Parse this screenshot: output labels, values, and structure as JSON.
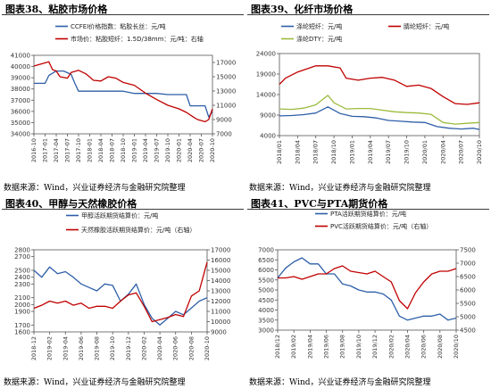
{
  "chart_data": [
    {
      "type": "line",
      "title": "图表38、粘胶市场价格",
      "source": "数据来源：Wind，兴业证券经济与金融研究院整理",
      "dual_axis": true,
      "legend_position": "top",
      "series": [
        {
          "name": "CCFEI价格指数：粘胶长丝：元/吨",
          "axis": "left",
          "color": "#2e5fa8",
          "x": [
            "2016-10",
            "2017-01",
            "2017-02",
            "2017-04",
            "2017-06",
            "2017-08",
            "2017-09",
            "2017-10",
            "2018-01",
            "2018-04",
            "2018-07",
            "2018-10",
            "2019-01",
            "2019-04",
            "2019-07",
            "2019-10",
            "2020-01",
            "2020-03",
            "2020-04",
            "2020-05",
            "2020-06",
            "2020-07",
            "2020-08",
            "2020-09",
            "2020-10"
          ],
          "y": [
            38500,
            38500,
            39200,
            39600,
            39600,
            39300,
            38500,
            37800,
            37800,
            37800,
            37800,
            37800,
            37600,
            37600,
            37600,
            37500,
            37500,
            37500,
            36500,
            36500,
            36500,
            36500,
            36500,
            35500,
            36000
          ]
        },
        {
          "name": "市场价：粘胶短纤：1.5D/38mm：元/吨：右轴",
          "axis": "right",
          "color": "#c00000",
          "x": [
            "2016-10",
            "2016-12",
            "2017-02",
            "2017-03",
            "2017-04",
            "2017-05",
            "2017-07",
            "2017-08",
            "2017-10",
            "2017-12",
            "2018-02",
            "2018-04",
            "2018-06",
            "2018-08",
            "2018-10",
            "2019-01",
            "2019-04",
            "2019-07",
            "2019-10",
            "2020-01",
            "2020-03",
            "2020-05",
            "2020-06",
            "2020-08",
            "2020-09",
            "2020-10"
          ],
          "y": [
            16500,
            16800,
            17100,
            16000,
            15800,
            15000,
            14800,
            15600,
            15900,
            15400,
            14500,
            14400,
            15000,
            14800,
            14200,
            13800,
            12700,
            11800,
            11000,
            10500,
            10000,
            9300,
            9000,
            8700,
            9000,
            10500
          ]
        }
      ],
      "y_left": {
        "min": 34000,
        "max": 41000,
        "ticks": [
          "34000",
          "35000",
          "36000",
          "37000",
          "38000",
          "39000",
          "40000",
          "41000"
        ]
      },
      "y_right": {
        "min": 7000,
        "max": 18000,
        "ticks": [
          "7000",
          "9000",
          "11000",
          "13000",
          "15000",
          "17000"
        ]
      },
      "x_ticks": [
        "2016-10",
        "2017-01",
        "2017-04",
        "2017-07",
        "2017-10",
        "2018-01",
        "2018-04",
        "2018-07",
        "2018-10",
        "2019-01",
        "2019-04",
        "2019-07",
        "2019-10",
        "2020-01",
        "2020-04",
        "2020-07",
        "2020-10"
      ],
      "grid": false
    },
    {
      "type": "line",
      "title": "图表39、化纤市场价格",
      "source": "数据来源：Wind，兴业证券经济与金融研究院整理",
      "dual_axis": false,
      "legend_position": "top",
      "series": [
        {
          "name": "涤纶短纤：元/吨",
          "axis": "left",
          "color": "#2e5fa8",
          "x": [
            "2018-01",
            "2018-03",
            "2018-05",
            "2018-07",
            "2018-09",
            "2018-11",
            "2019-01",
            "2019-03",
            "2019-05",
            "2019-07",
            "2019-09",
            "2019-11",
            "2020-01",
            "2020-03",
            "2020-05",
            "2020-07",
            "2020-09",
            "2020-10"
          ],
          "y": [
            8800,
            8900,
            9100,
            9500,
            11000,
            9400,
            8700,
            8600,
            8300,
            7700,
            7500,
            7300,
            7200,
            6200,
            5800,
            5600,
            5800,
            5500
          ]
        },
        {
          "name": "腈纶短纤：元/吨",
          "axis": "left",
          "color": "#c00000",
          "x": [
            "2018-01",
            "2018-02",
            "2018-04",
            "2018-06",
            "2018-07",
            "2018-09",
            "2018-11",
            "2018-12",
            "2019-02",
            "2019-04",
            "2019-06",
            "2019-08",
            "2019-10",
            "2019-12",
            "2020-02",
            "2020-04",
            "2020-06",
            "2020-08",
            "2020-10"
          ],
          "y": [
            16500,
            18000,
            19500,
            20500,
            21000,
            21000,
            20500,
            18000,
            17500,
            18000,
            18200,
            17500,
            16000,
            16300,
            15500,
            13500,
            11800,
            11600,
            12000
          ]
        },
        {
          "name": "涤纶DTY：元/吨",
          "axis": "left",
          "color": "#9bbb3b",
          "x": [
            "2018-01",
            "2018-03",
            "2018-05",
            "2018-07",
            "2018-09",
            "2018-10",
            "2018-12",
            "2019-02",
            "2019-04",
            "2019-06",
            "2019-08",
            "2019-10",
            "2019-12",
            "2020-02",
            "2020-04",
            "2020-06",
            "2020-08",
            "2020-10"
          ],
          "y": [
            10500,
            10400,
            10700,
            11500,
            13800,
            12000,
            10500,
            10600,
            10600,
            10200,
            9800,
            9600,
            9500,
            9200,
            7200,
            6800,
            7000,
            7200
          ]
        }
      ],
      "y_left": {
        "min": 4000,
        "max": 24000,
        "ticks": [
          "4000",
          "9000",
          "14000",
          "19000",
          "24000"
        ]
      },
      "x_ticks": [
        "2018/01",
        "2018/04",
        "2018/07",
        "2018/10",
        "2019/01",
        "2019/04",
        "2019/07",
        "2019/10",
        "2020/01",
        "2020/04",
        "2020/07",
        "2020/10"
      ],
      "grid": false
    },
    {
      "type": "line",
      "title": "图表40、甲醇与天然橡胶价格",
      "source": "数据来源：Wind，兴业证券经济与金融研究院整理",
      "dual_axis": true,
      "legend_position": "top",
      "series": [
        {
          "name": "甲醇活跃期货结算价：元/吨",
          "axis": "left",
          "color": "#2e5fa8",
          "x": [
            "2018-12",
            "2019-01",
            "2019-02",
            "2019-03",
            "2019-04",
            "2019-05",
            "2019-06",
            "2019-07",
            "2019-08",
            "2019-09",
            "2019-10",
            "2019-11",
            "2019-12",
            "2020-01",
            "2020-02",
            "2020-03",
            "2020-04",
            "2020-05",
            "2020-06",
            "2020-07",
            "2020-08",
            "2020-09",
            "2020-10"
          ],
          "y": [
            2500,
            2400,
            2550,
            2450,
            2480,
            2400,
            2300,
            2250,
            2200,
            2300,
            2280,
            2050,
            2150,
            2300,
            2000,
            1800,
            1700,
            1800,
            1900,
            1850,
            1950,
            2050,
            2100
          ]
        },
        {
          "name": "天然橡胶活跃期货结算价：元/吨（右轴）",
          "axis": "right",
          "color": "#c00000",
          "x": [
            "2018-12",
            "2019-01",
            "2019-02",
            "2019-03",
            "2019-04",
            "2019-05",
            "2019-06",
            "2019-07",
            "2019-08",
            "2019-09",
            "2019-10",
            "2019-11",
            "2019-12",
            "2020-01",
            "2020-02",
            "2020-03",
            "2020-04",
            "2020-05",
            "2020-06",
            "2020-07",
            "2020-08",
            "2020-09",
            "2020-10"
          ],
          "y": [
            11300,
            11600,
            12000,
            11800,
            12000,
            11600,
            11800,
            11300,
            11500,
            11500,
            11300,
            12000,
            12600,
            12800,
            11500,
            10000,
            10200,
            10400,
            10700,
            10500,
            12500,
            13000,
            15800
          ]
        }
      ],
      "y_left": {
        "min": 1600,
        "max": 2800,
        "ticks": [
          "1600",
          "1700",
          "1900",
          "2000",
          "2100",
          "2300",
          "2400",
          "2500",
          "2700",
          "2800"
        ]
      },
      "y_right": {
        "min": 9000,
        "max": 17000,
        "ticks": [
          "9000",
          "10000",
          "11000",
          "12000",
          "13000",
          "14000",
          "15000",
          "16000",
          "17000"
        ]
      },
      "x_ticks": [
        "2018-12",
        "2019-02",
        "2019-04",
        "2019-06",
        "2019-08",
        "2019-10",
        "2019-12",
        "2020-02",
        "2020-04",
        "2020-06",
        "2020-08",
        "2020-10"
      ],
      "grid": false
    },
    {
      "type": "line",
      "title": "图表41、PVC与PTA期货价格",
      "source": "数据来源：Wind，兴业证券经济与金融研究院整理",
      "dual_axis": true,
      "legend_position": "top",
      "series": [
        {
          "name": "PTA活跃期货结算价：元/吨",
          "axis": "left",
          "color": "#2e5fa8",
          "x": [
            "2018-12",
            "2019-01",
            "2019-02",
            "2019-03",
            "2019-04",
            "2019-05",
            "2019-06",
            "2019-07",
            "2019-08",
            "2019-09",
            "2019-10",
            "2019-11",
            "2019-12",
            "2020-01",
            "2020-02",
            "2020-03",
            "2020-04",
            "2020-05",
            "2020-06",
            "2020-07",
            "2020-08",
            "2020-09",
            "2020-10"
          ],
          "y": [
            5600,
            6100,
            6400,
            6600,
            6300,
            6300,
            5800,
            5800,
            5300,
            5200,
            5000,
            4900,
            4900,
            4800,
            4500,
            3700,
            3500,
            3600,
            3700,
            3700,
            3800,
            3500,
            3600
          ]
        },
        {
          "name": "PVC活跃期货结算价：元/吨（右轴）",
          "axis": "right",
          "color": "#c00000",
          "x": [
            "2018-12",
            "2019-01",
            "2019-02",
            "2019-03",
            "2019-04",
            "2019-05",
            "2019-06",
            "2019-07",
            "2019-08",
            "2019-09",
            "2019-10",
            "2019-11",
            "2019-12",
            "2020-01",
            "2020-02",
            "2020-03",
            "2020-04",
            "2020-05",
            "2020-06",
            "2020-07",
            "2020-08",
            "2020-09",
            "2020-10"
          ],
          "y": [
            6450,
            6450,
            6500,
            6400,
            6500,
            6600,
            6600,
            6800,
            6900,
            6700,
            6650,
            6600,
            6700,
            6500,
            6300,
            5600,
            5300,
            5900,
            6300,
            6600,
            6700,
            6700,
            6800
          ]
        }
      ],
      "y_left": {
        "min": 3000,
        "max": 7000,
        "ticks": [
          "3000",
          "3500",
          "4000",
          "4500",
          "5000",
          "5500",
          "6000",
          "6500",
          "7000"
        ]
      },
      "y_right": {
        "min": 4500,
        "max": 7500,
        "ticks": [
          "4500",
          "5000",
          "5500",
          "6000",
          "6500",
          "7000",
          "7500"
        ]
      },
      "x_ticks": [
        "2018/12",
        "2019/02",
        "2019/04",
        "2019/06",
        "2019/08",
        "2019/10",
        "2019/12",
        "2020/02",
        "2020/04",
        "2020/06",
        "2020/08",
        "2020/10"
      ],
      "grid": false
    }
  ]
}
